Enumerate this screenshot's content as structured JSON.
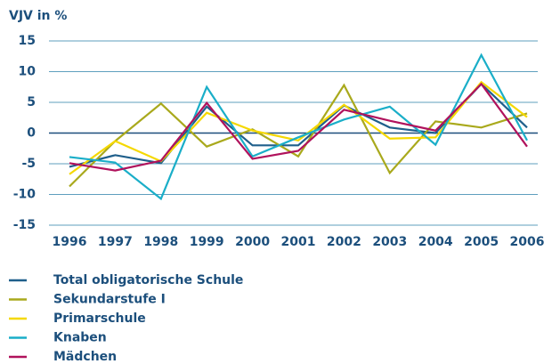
{
  "chart_data": {
    "type": "line",
    "ylabel": "VJV in %",
    "x": [
      "1996",
      "1997",
      "1998",
      "1999",
      "2000",
      "2001",
      "2002",
      "2003",
      "2004",
      "2005",
      "2006"
    ],
    "ylim": [
      -15,
      15
    ],
    "yticks": [
      15,
      10,
      5,
      0,
      -5,
      -10,
      -15
    ],
    "grid": true,
    "series": [
      {
        "name": "Total obligatorische Schule",
        "color": "#1f5f8b",
        "values": [
          -5.5,
          -3.6,
          -4.9,
          4.3,
          -2,
          -2,
          4.5,
          0.9,
          0,
          8,
          0.9
        ]
      },
      {
        "name": "Sekundarstufe I",
        "color": "#a9a91c",
        "values": [
          -8.7,
          -1.3,
          4.8,
          -2.2,
          0.6,
          -3.8,
          7.8,
          -6.5,
          1.9,
          0.9,
          3.2
        ]
      },
      {
        "name": "Primarschule",
        "color": "#f5d800",
        "values": [
          -6.7,
          -1.3,
          -4.6,
          3.3,
          0.4,
          -1.2,
          4.6,
          -0.9,
          -0.7,
          8.3,
          2.6
        ]
      },
      {
        "name": "Knaben",
        "color": "#1aaec8",
        "values": [
          -3.9,
          -4.8,
          -10.7,
          7.5,
          -3.8,
          -0.7,
          2.2,
          4.3,
          -1.9,
          12.7,
          -1.2
        ]
      },
      {
        "name": "Mädchen",
        "color": "#b0125c",
        "values": [
          -4.9,
          -6.1,
          -4.5,
          4.9,
          -4.2,
          -2.9,
          3.8,
          2,
          0.4,
          8,
          -2.2
        ]
      }
    ]
  }
}
